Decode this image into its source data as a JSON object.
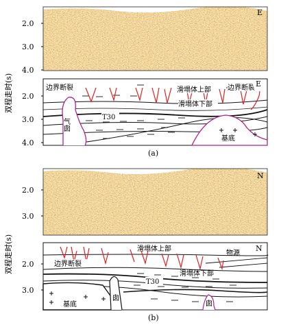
{
  "figure": {
    "panel_a": {
      "caption": "(a)",
      "direction": "E",
      "y_ticks": [
        "2.0",
        "3.0",
        "4.0"
      ],
      "y_axis_label": "双程走时(s)",
      "labels": {
        "boundary_fault_left": "边界断裂",
        "boundary_fault_right": "边界断裂",
        "slump_upper": "滑塌体上部",
        "slump_lower": "滑塌体下部",
        "horizon": "T30",
        "gas_chimney": "气囱",
        "basement": "基底"
      }
    },
    "panel_b": {
      "caption": "(b)",
      "direction": "N",
      "y_ticks": [
        "2.0",
        "3.0"
      ],
      "y_axis_label": "双程走时(s)",
      "labels": {
        "slump_upper": "滑塌体上部",
        "source": "物源",
        "boundary_fault": "边界断裂",
        "slump_lower": "滑塌体下部",
        "horizon": "T30",
        "basement": "基底",
        "gas_chimney_char1": "囱",
        "gas_chimney_char2": "囱"
      }
    },
    "colors": {
      "fault": "#e02020",
      "gas_outline": "#b0208a",
      "line": "#111111"
    }
  }
}
